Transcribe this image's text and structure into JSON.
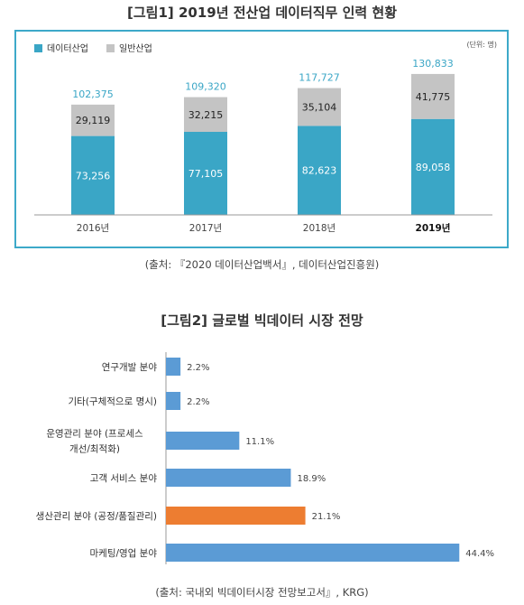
{
  "figure1": {
    "title": "[그림1] 2019년 전산업 데이터직무 인력 현황",
    "source": "(출처: 『2020 데이터산업백서』, 데이터산업진흥원)"
  },
  "figure2": {
    "title": "[그림2] 글로벌 빅데이터 시장 전망",
    "source": "(출처: 국내외 빅데이터시장 전망보고서』, KRG)"
  },
  "colors": {
    "data_industry": "#3aa6c6",
    "general_industry": "#c4c4c4",
    "total_label": "#3aa6c6",
    "bar_blue": "#5b9bd5",
    "bar_highlight": "#ed7d31",
    "frame": "#3da9c9"
  },
  "chart_data": [
    {
      "type": "bar",
      "stacked": true,
      "unit": "(단위: 명)",
      "categories": [
        "2016년",
        "2017년",
        "2018년",
        "2019년"
      ],
      "series": [
        {
          "name": "데이터산업",
          "values": [
            73256,
            77105,
            82623,
            89058
          ],
          "labels": [
            "73,256",
            "77,105",
            "82,623",
            "89,058"
          ]
        },
        {
          "name": "일반산업",
          "values": [
            29119,
            32215,
            35104,
            41775
          ],
          "labels": [
            "29,119",
            "32,215",
            "35,104",
            "41,775"
          ]
        }
      ],
      "totals": [
        102375,
        109320,
        117727,
        130833
      ],
      "total_labels": [
        "102,375",
        "109,320",
        "117,727",
        "130,833"
      ],
      "highlight_category": "2019년",
      "ylim": [
        0,
        145000
      ],
      "legend": "top-left",
      "grid": false
    },
    {
      "type": "bar",
      "orientation": "horizontal",
      "categories": [
        "연구개발 분야",
        "기타(구체적으로 명시)",
        "운영관리 분야 (프로세스\n개선/최적화)",
        "고객 서비스 분야",
        "생산관리 분야 (공정/품질관리)",
        "마케팅/영업 분야"
      ],
      "values": [
        2.2,
        2.2,
        11.1,
        18.9,
        21.1,
        44.4
      ],
      "labels": [
        "2.2%",
        "2.2%",
        "11.1%",
        "18.9%",
        "21.1%",
        "44.4%"
      ],
      "highlight_index": 4,
      "xlim": [
        0,
        46
      ],
      "grid": false
    }
  ]
}
